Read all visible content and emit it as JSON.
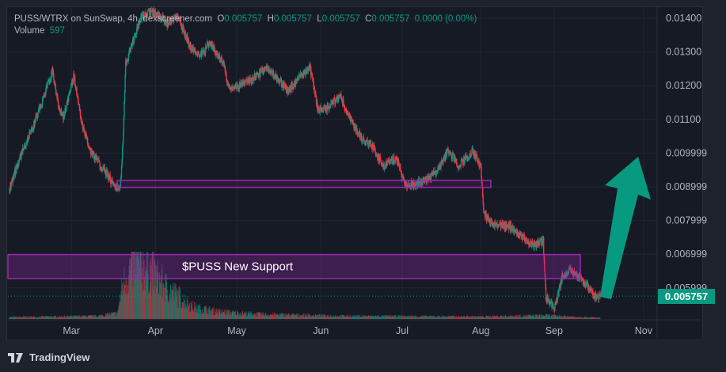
{
  "header": {
    "symbol": "PUSS/WTRX on SunSwap, 4h, dexscreener.com",
    "o_label": "O",
    "o": "0.005757",
    "h_label": "H",
    "h": "0.005757",
    "l_label": "L",
    "l": "0.005757",
    "c_label": "C",
    "c": "0.005757",
    "change": "0.0000 (0.00%)",
    "volume_label": "Volume",
    "volume": "597"
  },
  "footer": {
    "brand": "TradingView"
  },
  "colors": {
    "up": "#089981",
    "down": "#f23645",
    "box": "#9c27b0",
    "arrow": "#089981"
  },
  "chart_data": {
    "type": "candlestick",
    "title": "PUSS/WTRX on SunSwap, 4h",
    "x_unit": "days since Mar 1",
    "xlim": [
      -23.4,
      216
    ],
    "ylim": [
      0.00515,
      0.01455
    ],
    "y_ticks": [
      "0.01400",
      "0.01300",
      "0.01200",
      "0.01100",
      "0.009999",
      "0.008999",
      "0.007999",
      "0.006999",
      "0.005999"
    ],
    "y_tick_values": [
      0.014,
      0.013,
      0.012,
      0.011,
      0.01,
      0.009,
      0.008,
      0.007,
      0.006
    ],
    "x_ticks": [
      {
        "label": "Mar",
        "d": 0
      },
      {
        "label": "Apr",
        "d": 31
      },
      {
        "label": "May",
        "d": 61
      },
      {
        "label": "Jun",
        "d": 92
      },
      {
        "label": "Jul",
        "d": 122
      },
      {
        "label": "Aug",
        "d": 151
      },
      {
        "label": "Sep",
        "d": 178
      },
      {
        "label": "Nov",
        "d": 211
      }
    ],
    "price_path": [
      [
        -23,
        0.0089
      ],
      [
        -19,
        0.00985
      ],
      [
        -13,
        0.01102
      ],
      [
        -10,
        0.01172
      ],
      [
        -7,
        0.01243
      ],
      [
        -5,
        0.01149
      ],
      [
        -3,
        0.01102
      ],
      [
        1,
        0.01231
      ],
      [
        4,
        0.01078
      ],
      [
        7,
        0.01008
      ],
      [
        10,
        0.00973
      ],
      [
        15,
        0.00914
      ],
      [
        18,
        0.0089
      ],
      [
        19,
        0.01032
      ],
      [
        20,
        0.01266
      ],
      [
        23,
        0.01337
      ],
      [
        26,
        0.01407
      ],
      [
        31,
        0.01419
      ],
      [
        35,
        0.01384
      ],
      [
        39,
        0.01407
      ],
      [
        44,
        0.01313
      ],
      [
        48,
        0.0129
      ],
      [
        51,
        0.01325
      ],
      [
        56,
        0.01266
      ],
      [
        58,
        0.01196
      ],
      [
        61,
        0.01196
      ],
      [
        67,
        0.01219
      ],
      [
        72,
        0.01255
      ],
      [
        76,
        0.01219
      ],
      [
        80,
        0.01184
      ],
      [
        85,
        0.01231
      ],
      [
        88,
        0.01255
      ],
      [
        91,
        0.01125
      ],
      [
        95,
        0.01137
      ],
      [
        99,
        0.01172
      ],
      [
        102,
        0.01114
      ],
      [
        107,
        0.01043
      ],
      [
        111,
        0.0102
      ],
      [
        115,
        0.00961
      ],
      [
        120,
        0.00985
      ],
      [
        123,
        0.00902
      ],
      [
        127,
        0.00909
      ],
      [
        132,
        0.00926
      ],
      [
        135,
        0.00949
      ],
      [
        139,
        0.01008
      ],
      [
        143,
        0.00961
      ],
      [
        148,
        0.01008
      ],
      [
        151,
        0.00961
      ],
      [
        152,
        0.0082
      ],
      [
        156,
        0.00785
      ],
      [
        161,
        0.00785
      ],
      [
        165,
        0.00762
      ],
      [
        170,
        0.00726
      ],
      [
        174,
        0.00738
      ],
      [
        175,
        0.00574
      ],
      [
        178,
        0.00539
      ],
      [
        181,
        0.00632
      ],
      [
        184,
        0.00656
      ],
      [
        187,
        0.00632
      ],
      [
        190,
        0.00609
      ],
      [
        193,
        0.00574
      ],
      [
        195,
        0.005757
      ]
    ],
    "volume_path": [
      [
        -23,
        3
      ],
      [
        10,
        5
      ],
      [
        17,
        10
      ],
      [
        19,
        60
      ],
      [
        23,
        100
      ],
      [
        28,
        90
      ],
      [
        35,
        55
      ],
      [
        45,
        20
      ],
      [
        55,
        12
      ],
      [
        70,
        8
      ],
      [
        100,
        5
      ],
      [
        150,
        4
      ],
      [
        175,
        6
      ],
      [
        195,
        2
      ]
    ],
    "last_price": "0.005757",
    "annotations": {
      "support_label": "$PUSS New Support",
      "support_zone": [
        0.00628,
        0.00699
      ],
      "resistance_line_zone": [
        0.00898,
        0.00919
      ],
      "arrow": "up"
    }
  }
}
